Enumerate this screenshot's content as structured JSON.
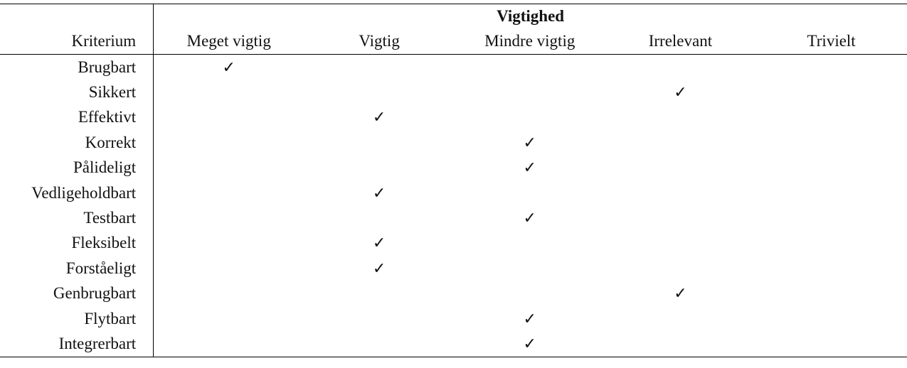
{
  "table": {
    "group_header": "Vigtighed",
    "criterion_header": "Kriterium",
    "columns": [
      "Meget vigtig",
      "Vigtig",
      "Mindre vigtig",
      "Irrelevant",
      "Trivielt"
    ],
    "check_symbol": "✓",
    "rows": [
      {
        "label": "Brugbart",
        "level": "Meget vigtig"
      },
      {
        "label": "Sikkert",
        "level": "Irrelevant"
      },
      {
        "label": "Effektivt",
        "level": "Vigtig"
      },
      {
        "label": "Korrekt",
        "level": "Mindre vigtig"
      },
      {
        "label": "Pålideligt",
        "level": "Mindre vigtig"
      },
      {
        "label": "Vedligeholdbart",
        "level": "Vigtig"
      },
      {
        "label": "Testbart",
        "level": "Mindre vigtig"
      },
      {
        "label": "Fleksibelt",
        "level": "Vigtig"
      },
      {
        "label": "Forståeligt",
        "level": "Vigtig"
      },
      {
        "label": "Genbrugbart",
        "level": "Irrelevant"
      },
      {
        "label": "Flytbart",
        "level": "Mindre vigtig"
      },
      {
        "label": "Integrerbart",
        "level": "Mindre vigtig"
      }
    ]
  }
}
